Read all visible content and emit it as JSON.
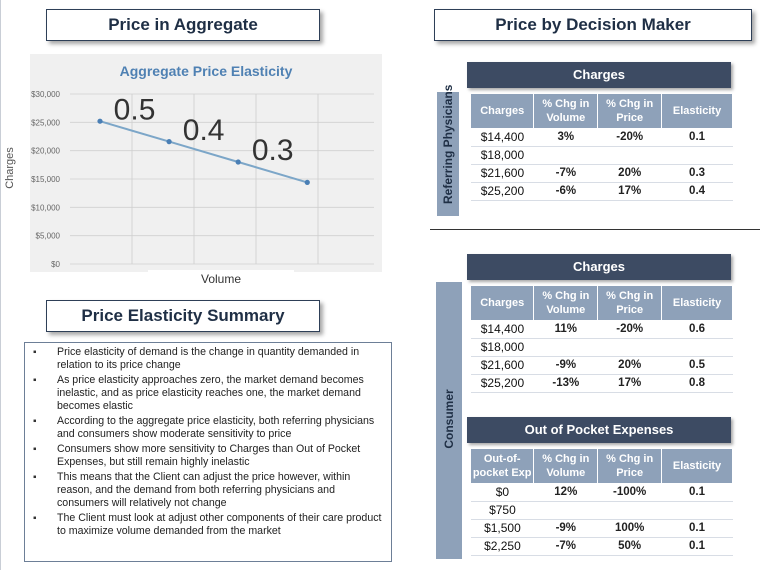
{
  "titles": {
    "aggregate": "Price in Aggregate",
    "decision_maker": "Price by Decision Maker",
    "summary": "Price Elasticity Summary"
  },
  "chart_data": {
    "type": "line",
    "title": "Aggregate Price Elasticity",
    "xlabel": "Volume",
    "ylabel": "Charges",
    "ylim": [
      0,
      30000
    ],
    "y_ticks": [
      "$0",
      "$5,000",
      "$10,000",
      "$15,000",
      "$20,000",
      "$25,000",
      "$30,000"
    ],
    "grid": true,
    "series": [
      {
        "values": [
          25200,
          21600,
          18000,
          14400
        ]
      }
    ],
    "annotations": [
      "0.5",
      "0.4",
      "0.3"
    ],
    "colors": {
      "line": "#7ca6c8",
      "marker": "#4a7fb5",
      "grid": "#cfcfcf"
    }
  },
  "summary_items": [
    "Price elasticity of demand is the change in quantity demanded in relation to its price change",
    "As price elasticity approaches zero, the market demand becomes inelastic, and as price elasticity reaches one, the market demand becomes elastic",
    "According to the aggregate price elasticity, both referring physicians and consumers show moderate sensitivity to price",
    "Consumers show more sensitivity to Charges than Out of Pocket Expenses, but still remain highly inelastic",
    "This means that the Client can adjust the price however, within reason, and the demand from both referring physicians and consumers will relatively not change",
    "The Client must look at adjust other components of their care product to maximize volume demanded from the market"
  ],
  "side_labels": {
    "referring": "Referring Physicians",
    "consumer": "Consumer"
  },
  "tables": {
    "referring_charges": {
      "title": "Charges",
      "headers": [
        "Charges",
        "% Chg in Volume",
        "% Chg in Price",
        "Elasticity"
      ],
      "rows": [
        [
          "$14,400",
          "3%",
          "-20%",
          "0.1"
        ],
        [
          "$18,000",
          "",
          "",
          ""
        ],
        [
          "$21,600",
          "-7%",
          "20%",
          "0.3"
        ],
        [
          "$25,200",
          "-6%",
          "17%",
          "0.4"
        ]
      ]
    },
    "consumer_charges": {
      "title": "Charges",
      "headers": [
        "Charges",
        "% Chg in Volume",
        "% Chg in Price",
        "Elasticity"
      ],
      "rows": [
        [
          "$14,400",
          "11%",
          "-20%",
          "0.6"
        ],
        [
          "$18,000",
          "",
          "",
          ""
        ],
        [
          "$21,600",
          "-9%",
          "20%",
          "0.5"
        ],
        [
          "$25,200",
          "-13%",
          "17%",
          "0.8"
        ]
      ]
    },
    "consumer_oop": {
      "title": "Out of Pocket Expenses",
      "headers": [
        "Out-of-pocket Exp",
        "% Chg in Volume",
        "% Chg in Price",
        "Elasticity"
      ],
      "rows": [
        [
          "$0",
          "12%",
          "-100%",
          "0.1"
        ],
        [
          "$750",
          "",
          "",
          ""
        ],
        [
          "$1,500",
          "-9%",
          "100%",
          "0.1"
        ],
        [
          "$2,250",
          "-7%",
          "50%",
          "0.1"
        ]
      ]
    }
  }
}
